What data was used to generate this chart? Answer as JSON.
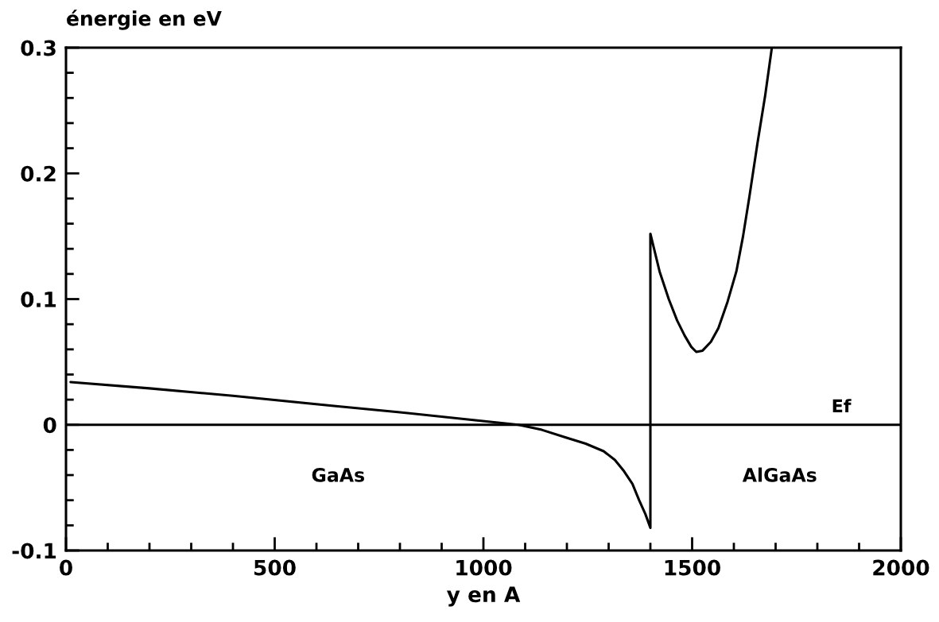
{
  "chart_data": {
    "type": "line",
    "xlabel": "y en A",
    "ylabel": "énergie en eV",
    "series": [
      {
        "color": "#000000",
        "x": [
          11,
          200,
          400,
          642,
          800,
          985,
          1084,
          1140,
          1196,
          1245,
          1288,
          1315,
          1337,
          1357,
          1373,
          1388,
          1400,
          1400,
          1422,
          1444,
          1464,
          1482,
          1498,
          1510,
          1525,
          1545,
          1563,
          1585,
          1606,
          1622,
          1637,
          1657,
          1675,
          1691
        ],
        "values": [
          0.034,
          0.029,
          0.023,
          0.015,
          0.01,
          0.0035,
          0,
          -0.004,
          -0.01,
          -0.015,
          -0.021,
          -0.028,
          -0.037,
          -0.047,
          -0.06,
          -0.071,
          -0.082,
          0.152,
          0.122,
          0.1,
          0.083,
          0.071,
          0.062,
          0.058,
          0.059,
          0.066,
          0.077,
          0.098,
          0.122,
          0.15,
          0.181,
          0.225,
          0.262,
          0.3
        ]
      }
    ],
    "ref_lines": [
      {
        "axis": "y",
        "value": 0,
        "label": "Ef",
        "color": "#000000"
      }
    ],
    "annotations": [
      "GaAs",
      "AlGaAs"
    ],
    "xlim": [
      0,
      2000
    ],
    "ylim": [
      -0.1,
      0.3
    ],
    "xticks": [
      0,
      {
        "value": 100,
        "label": null
      },
      {
        "value": 200,
        "label": null
      },
      {
        "value": 300,
        "label": null
      },
      {
        "value": 400,
        "label": null
      },
      500,
      {
        "value": 600,
        "label": null
      },
      {
        "value": 700,
        "label": null
      },
      {
        "value": 800,
        "label": null
      },
      {
        "value": 900,
        "label": null
      },
      1000,
      {
        "value": 1100,
        "label": null
      },
      {
        "value": 1200,
        "label": null
      },
      {
        "value": 1300,
        "label": null
      },
      {
        "value": 1400,
        "label": null
      },
      1500,
      {
        "value": 1600,
        "label": null
      },
      {
        "value": 1700,
        "label": null
      },
      {
        "value": 1800,
        "label": null
      },
      {
        "value": 1900,
        "label": null
      },
      2000
    ],
    "yticks": [
      -0.1,
      {
        "value": -0.08,
        "label": null
      },
      {
        "value": -0.06,
        "label": null
      },
      {
        "value": -0.04,
        "label": null
      },
      {
        "value": -0.02,
        "label": null
      },
      0,
      {
        "value": 0.02,
        "label": null
      },
      {
        "value": 0.04,
        "label": null
      },
      {
        "value": 0.06,
        "label": null
      },
      {
        "value": 0.08,
        "label": null
      },
      0.1,
      {
        "value": 0.12,
        "label": null
      },
      {
        "value": 0.14,
        "label": null
      },
      {
        "value": 0.16,
        "label": null
      },
      {
        "value": 0.18,
        "label": null
      },
      0.2,
      {
        "value": 0.22,
        "label": null
      },
      {
        "value": 0.24,
        "label": null
      },
      {
        "value": 0.26,
        "label": null
      },
      {
        "value": 0.28,
        "label": null
      },
      0.3
    ],
    "grid": false,
    "legend": false
  }
}
